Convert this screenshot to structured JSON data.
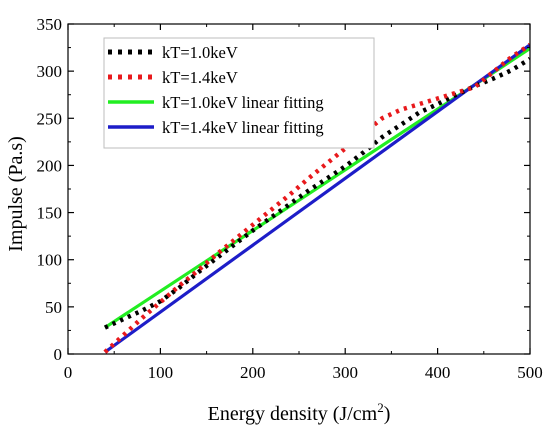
{
  "chart_data": {
    "type": "line",
    "title": "",
    "xlabel": "Energy density (J/cm",
    "xlabel_sup": "2",
    "xlabel_suffix": ")",
    "ylabel": "Impulse (Pa.s)",
    "xlim": [
      0,
      500
    ],
    "ylim": [
      0,
      350
    ],
    "xticks": [
      0,
      100,
      200,
      300,
      400,
      500
    ],
    "yticks": [
      0,
      50,
      100,
      150,
      200,
      250,
      300,
      350
    ],
    "grid": false,
    "legend_position": "top-left",
    "series": [
      {
        "name": "kT=1.0keV",
        "style": "dotted",
        "color": "#000000",
        "x": [
          40,
          60,
          80,
          100,
          120,
          140,
          160,
          180,
          200,
          220,
          240,
          260,
          280,
          300,
          320,
          340,
          360,
          380,
          400,
          420,
          440,
          460,
          480,
          500
        ],
        "y": [
          28,
          37,
          46,
          56,
          70,
          86,
          101,
          116,
          131,
          145,
          159,
          173,
          186,
          199,
          214,
          230,
          243,
          256,
          265,
          275,
          284,
          292,
          301,
          313
        ]
      },
      {
        "name": "kT=1.4keV",
        "style": "dotted",
        "color": "#e8191c",
        "x": [
          40,
          60,
          80,
          100,
          120,
          140,
          160,
          180,
          200,
          220,
          240,
          260,
          280,
          300,
          320,
          340,
          360,
          380,
          400,
          420,
          440,
          460,
          480,
          500
        ],
        "y": [
          2,
          20,
          38,
          55,
          72,
          88,
          105,
          121,
          137,
          153,
          169,
          186,
          202,
          218,
          234,
          250,
          259,
          265,
          271,
          277,
          283,
          299,
          315,
          328
        ]
      },
      {
        "name": "kT=1.0keV linear fitting",
        "style": "solid",
        "color": "#22ee22",
        "x": [
          40,
          500
        ],
        "y": [
          28,
          324
        ]
      },
      {
        "name": "kT=1.4keV linear fitting",
        "style": "solid",
        "color": "#1d1dc8",
        "x": [
          40,
          500
        ],
        "y": [
          2,
          328
        ]
      }
    ]
  }
}
